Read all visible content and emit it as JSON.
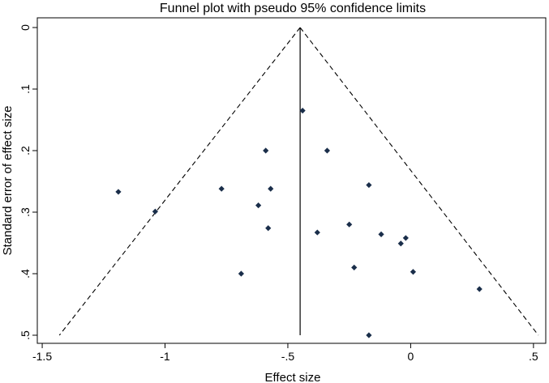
{
  "chart_data": {
    "type": "scatter",
    "title": "Funnel plot with pseudo 95% confidence limits",
    "xlabel": "Effect size",
    "ylabel": "Standard error of effect size",
    "xlim": [
      -1.52,
      0.55
    ],
    "ylim": [
      0,
      0.5
    ],
    "y_reversed": true,
    "grid": false,
    "xticks": [
      -1.5,
      -1,
      -0.5,
      0,
      0.5
    ],
    "xtick_labels": [
      "-1.5",
      "-1",
      "-.5",
      "0",
      ".5"
    ],
    "yticks": [
      0,
      0.1,
      0.2,
      0.3,
      0.4,
      0.5
    ],
    "ytick_labels": [
      "0",
      ".1",
      ".2",
      ".3",
      ".4",
      ".5"
    ],
    "pooled_effect": -0.45,
    "funnel": {
      "apex": [
        -0.45,
        0
      ],
      "bottom_left": [
        -1.43,
        0.5
      ],
      "bottom_right": [
        0.52,
        0.5
      ]
    },
    "marker_color": "#1a2e4a",
    "points": [
      {
        "x": -0.44,
        "y": 0.135
      },
      {
        "x": -0.59,
        "y": 0.2
      },
      {
        "x": -0.34,
        "y": 0.2
      },
      {
        "x": -1.19,
        "y": 0.267
      },
      {
        "x": -0.77,
        "y": 0.262
      },
      {
        "x": -0.57,
        "y": 0.262
      },
      {
        "x": -0.17,
        "y": 0.256
      },
      {
        "x": -1.04,
        "y": 0.299
      },
      {
        "x": -0.62,
        "y": 0.289
      },
      {
        "x": -0.58,
        "y": 0.326
      },
      {
        "x": -0.38,
        "y": 0.333
      },
      {
        "x": -0.25,
        "y": 0.32
      },
      {
        "x": -0.12,
        "y": 0.336
      },
      {
        "x": -0.02,
        "y": 0.342
      },
      {
        "x": -0.04,
        "y": 0.351
      },
      {
        "x": -0.23,
        "y": 0.39
      },
      {
        "x": -0.69,
        "y": 0.4
      },
      {
        "x": 0.01,
        "y": 0.397
      },
      {
        "x": 0.28,
        "y": 0.425
      },
      {
        "x": -0.17,
        "y": 0.5
      }
    ]
  }
}
